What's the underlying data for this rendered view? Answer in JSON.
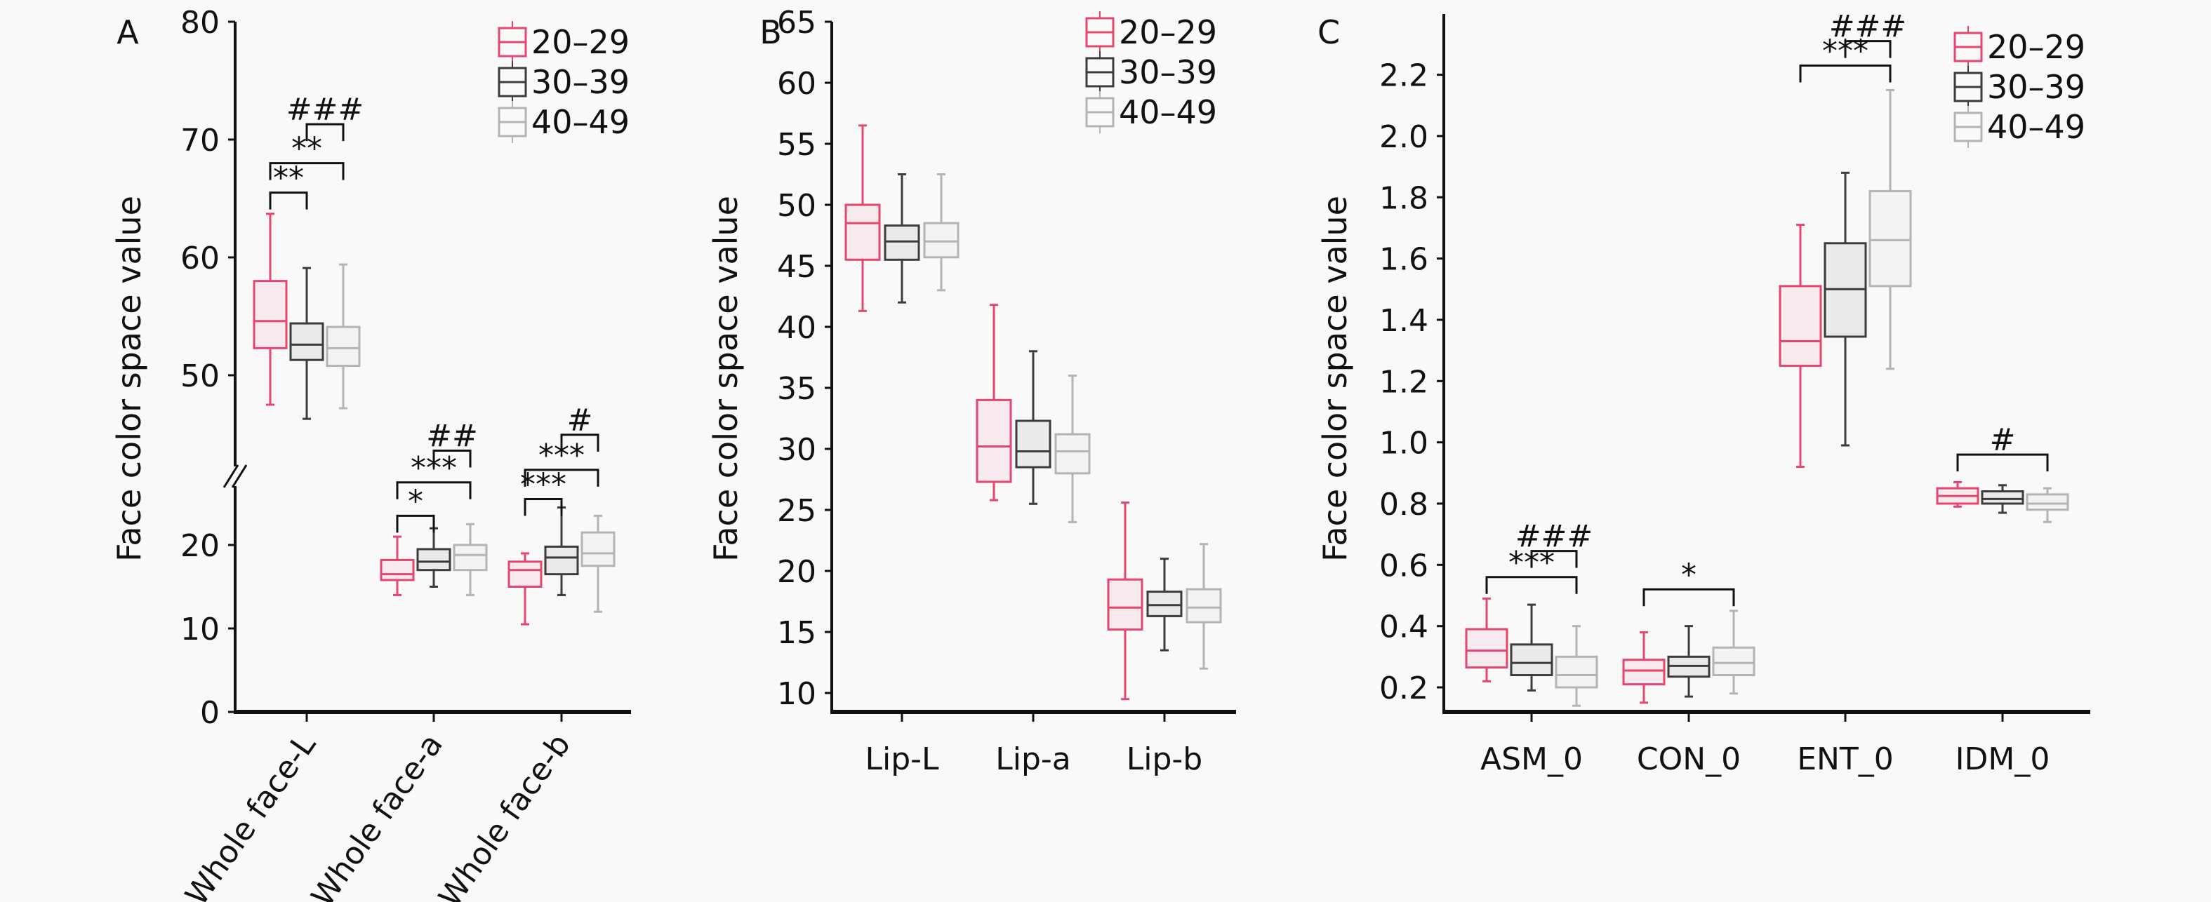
{
  "legend": [
    "20–29",
    "30–39",
    "40–49"
  ],
  "colors": {
    "20–29": "#e5466f",
    "30–39": "#3c3c3c",
    "40–49": "#b4b4b4"
  },
  "chart_data": [
    {
      "type": "box",
      "panel": "A",
      "ylabel": "Face color space value",
      "axis_break": [
        30,
        45
      ],
      "yticks_lower": [
        0,
        10,
        20
      ],
      "yticks_upper": [
        50,
        60,
        70,
        80
      ],
      "categories": [
        "Whole face-L",
        "Whole face-a",
        "Whole face-b"
      ],
      "boxes": [
        [
          [
            47.5,
            52.3,
            54.6,
            58.0,
            63.7
          ],
          [
            46.3,
            51.3,
            52.6,
            54.4,
            59.1
          ],
          [
            47.2,
            50.8,
            52.3,
            54.1,
            59.4
          ]
        ],
        [
          [
            14.0,
            15.8,
            16.5,
            18.2,
            21.0
          ],
          [
            15.0,
            17.0,
            18.0,
            19.5,
            22.0
          ],
          [
            14.0,
            17.0,
            18.8,
            20.0,
            22.5
          ]
        ],
        [
          [
            10.5,
            15.0,
            17.0,
            18.0,
            19.0
          ],
          [
            14.0,
            16.5,
            18.5,
            19.8,
            24.5
          ],
          [
            12.0,
            17.5,
            19.0,
            21.5,
            23.5
          ]
        ]
      ],
      "annotations": [
        {
          "category": 0,
          "from": 0,
          "to": 1,
          "level": 65.5,
          "text": "**"
        },
        {
          "category": 0,
          "from": 0,
          "to": 2,
          "level": 68.0,
          "text": "**"
        },
        {
          "category": 0,
          "from": 1,
          "to": 2,
          "level": 71.3,
          "text": "###"
        },
        {
          "category": 1,
          "from": 0,
          "to": 1,
          "level": 23.5,
          "text": "*"
        },
        {
          "category": 1,
          "from": 0,
          "to": 2,
          "level": 27.5,
          "text": "***"
        },
        {
          "category": 1,
          "from": 1,
          "to": 2,
          "level": 31.3,
          "text": "##"
        },
        {
          "category": 2,
          "from": 0,
          "to": 1,
          "level": 25.5,
          "text": "***"
        },
        {
          "category": 2,
          "from": 0,
          "to": 2,
          "level": 29.0,
          "text": "***"
        },
        {
          "category": 2,
          "from": 1,
          "to": 2,
          "level": 33.2,
          "text": "#"
        }
      ]
    },
    {
      "type": "box",
      "panel": "B",
      "ylabel": "Face color space value",
      "ylim": [
        8.5,
        65
      ],
      "yticks": [
        10,
        15,
        20,
        25,
        30,
        35,
        40,
        45,
        50,
        55,
        60,
        65
      ],
      "categories": [
        "Lip-L",
        "Lip-a",
        "Lip-b"
      ],
      "boxes": [
        [
          [
            41.3,
            45.5,
            48.5,
            50.0,
            56.5
          ],
          [
            42.0,
            45.5,
            47.0,
            48.3,
            52.5
          ],
          [
            43.0,
            45.7,
            47.0,
            48.5,
            52.5
          ]
        ],
        [
          [
            25.8,
            27.3,
            30.2,
            34.0,
            41.8
          ],
          [
            25.5,
            28.5,
            29.8,
            32.3,
            38.0
          ],
          [
            24.0,
            28.0,
            29.8,
            31.2,
            36.0
          ]
        ],
        [
          [
            9.5,
            15.2,
            17.0,
            19.3,
            25.6
          ],
          [
            13.5,
            16.3,
            17.2,
            18.3,
            21.0
          ],
          [
            12.0,
            15.8,
            17.0,
            18.5,
            22.2
          ]
        ]
      ],
      "annotations": []
    },
    {
      "type": "box",
      "panel": "C",
      "ylabel": "Face color space value",
      "ylim": [
        0.12,
        2.35
      ],
      "yticks": [
        "0.2",
        "0.4",
        "0.6",
        "0.8",
        "1.0",
        "1.2",
        "1.4",
        "1.6",
        "1.8",
        "2.0",
        "2.2"
      ],
      "categories": [
        "ASM_0",
        "CON_0",
        "ENT_0",
        "IDM_0"
      ],
      "boxes": [
        [
          [
            0.22,
            0.265,
            0.32,
            0.39,
            0.49
          ],
          [
            0.19,
            0.24,
            0.28,
            0.34,
            0.47
          ],
          [
            0.14,
            0.2,
            0.24,
            0.3,
            0.4
          ]
        ],
        [
          [
            0.15,
            0.21,
            0.255,
            0.29,
            0.38
          ],
          [
            0.17,
            0.235,
            0.27,
            0.3,
            0.4
          ],
          [
            0.18,
            0.24,
            0.28,
            0.33,
            0.45
          ]
        ],
        [
          [
            0.92,
            1.25,
            1.33,
            1.51,
            1.71
          ],
          [
            0.99,
            1.345,
            1.5,
            1.65,
            1.88
          ],
          [
            1.24,
            1.51,
            1.66,
            1.82,
            2.15
          ]
        ],
        [
          [
            0.79,
            0.8,
            0.825,
            0.85,
            0.87
          ],
          [
            0.77,
            0.8,
            0.815,
            0.84,
            0.86
          ],
          [
            0.74,
            0.78,
            0.8,
            0.83,
            0.85
          ]
        ]
      ],
      "annotations": [
        {
          "category": 0,
          "from": 0,
          "to": 2,
          "level": 0.56,
          "text": "***"
        },
        {
          "category": 0,
          "from": 1,
          "to": 2,
          "level": 0.645,
          "text": "###"
        },
        {
          "category": 1,
          "from": 0,
          "to": 2,
          "level": 0.52,
          "text": "*"
        },
        {
          "category": 2,
          "from": 0,
          "to": 2,
          "level": 2.23,
          "text": "***"
        },
        {
          "category": 2,
          "from": 1,
          "to": 2,
          "level": 2.31,
          "text": "###"
        },
        {
          "category": 3,
          "from": 0,
          "to": 2,
          "level": 0.96,
          "text": "#"
        }
      ]
    }
  ]
}
